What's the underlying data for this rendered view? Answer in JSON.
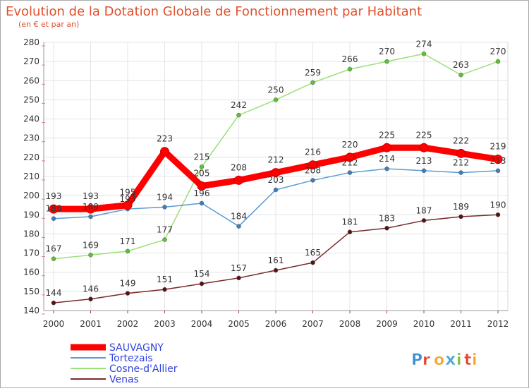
{
  "chart_data": {
    "type": "line",
    "title": "Evolution de la Dotation Globale de Fonctionnement par Habitant",
    "subtitle": "(en € et par an)",
    "xlabel": "",
    "ylabel": "",
    "ylim": [
      140,
      280
    ],
    "yticks": [
      140,
      150,
      160,
      170,
      180,
      190,
      200,
      210,
      220,
      230,
      240,
      250,
      260,
      270,
      280
    ],
    "x": [
      "2000",
      "2001",
      "2002",
      "2003",
      "2004",
      "2005",
      "2006",
      "2007",
      "2008",
      "2009",
      "2010",
      "2011",
      "2012"
    ],
    "grid": true,
    "legend_position": "bottom-left",
    "series": [
      {
        "name": "Venas",
        "color": "#7a2a2a",
        "marker": "#5a1010",
        "values": [
          144,
          146,
          149,
          151,
          154,
          157,
          161,
          165,
          181,
          183,
          187,
          189,
          190
        ]
      },
      {
        "name": "Cosne-d'Allier",
        "color": "#9be07a",
        "marker": "#5cc234",
        "values": [
          167,
          169,
          171,
          177,
          215,
          242,
          250,
          259,
          266,
          270,
          274,
          263,
          270
        ]
      },
      {
        "name": "Tortezais",
        "color": "#5b9bd5",
        "marker": "#3d7ec0",
        "values": [
          188,
          189,
          193,
          194,
          196,
          184,
          203,
          208,
          212,
          214,
          213,
          212,
          213
        ]
      },
      {
        "name": "SAUVAGNY",
        "color": "#ff0000",
        "marker": "#ff0000",
        "values": [
          193,
          193,
          195,
          223,
          205,
          208,
          212,
          216,
          220,
          225,
          225,
          222,
          219
        ]
      }
    ],
    "legend": [
      {
        "name": "SAUVAGNY",
        "color": "#ff0000"
      },
      {
        "name": "Tortezais",
        "color": "#5b9bd5"
      },
      {
        "name": "Cosne-d'Allier",
        "color": "#9be07a"
      },
      {
        "name": "Venas",
        "color": "#7a2a2a"
      }
    ]
  },
  "logo": {
    "text": "Proxiti"
  }
}
